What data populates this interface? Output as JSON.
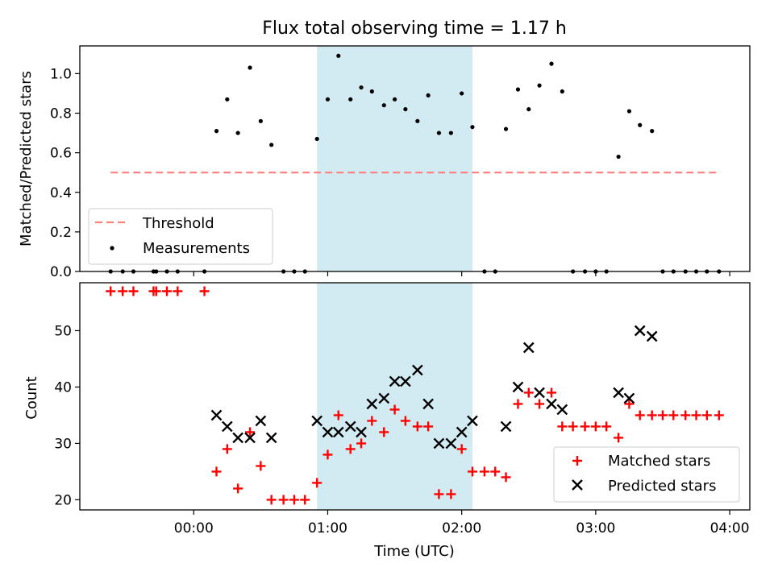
{
  "title": "Flux total observing time = 1.17 h",
  "chart_data": [
    {
      "type": "scatter",
      "panel": "top",
      "ylabel": "Matched/Predicted stars",
      "xlabel": "",
      "ylim": [
        0,
        1.14
      ],
      "yticks": [
        0.0,
        0.2,
        0.4,
        0.6,
        0.8,
        1.0
      ],
      "ytick_labels": [
        "0.0",
        "0.2",
        "0.4",
        "0.6",
        "0.8",
        "1.0"
      ],
      "threshold": {
        "name": "Threshold",
        "value": 0.5,
        "x_start": -0.62,
        "x_end": 3.93,
        "color": "#ff7f7f"
      },
      "highlight": {
        "x_start": 0.92,
        "x_end": 2.08,
        "color": "#add8e6"
      },
      "legend": {
        "position": "lower-left",
        "entries": [
          "Threshold",
          "Measurements"
        ]
      },
      "series": [
        {
          "name": "Measurements",
          "color": "#000000",
          "x": [
            -0.62,
            -0.53,
            -0.45,
            -0.3,
            -0.28,
            -0.2,
            -0.12,
            0.08,
            0.17,
            0.25,
            0.33,
            0.42,
            0.5,
            0.58,
            0.67,
            0.75,
            0.83,
            0.92,
            1.0,
            1.08,
            1.17,
            1.25,
            1.33,
            1.42,
            1.5,
            1.58,
            1.67,
            1.75,
            1.83,
            1.92,
            2.0,
            2.08,
            2.17,
            2.25,
            2.33,
            2.42,
            2.5,
            2.58,
            2.67,
            2.75,
            2.83,
            2.92,
            3.0,
            3.08,
            3.17,
            3.25,
            3.33,
            3.42,
            3.5,
            3.58,
            3.67,
            3.75,
            3.83,
            3.92
          ],
          "y": [
            0,
            0,
            0,
            0,
            0,
            0,
            0,
            0,
            0.71,
            0.87,
            0.7,
            1.03,
            0.76,
            0.64,
            0,
            0,
            0,
            0.67,
            0.87,
            1.09,
            0.87,
            0.93,
            0.91,
            0.84,
            0.87,
            0.82,
            0.76,
            0.89,
            0.7,
            0.7,
            0.9,
            0.73,
            0,
            0,
            0.72,
            0.92,
            0.82,
            0.94,
            1.05,
            0.91,
            0,
            0,
            0,
            0,
            0.58,
            0.81,
            0.74,
            0.71,
            0,
            0,
            0,
            0,
            0,
            0
          ]
        }
      ]
    },
    {
      "type": "scatter",
      "panel": "bottom",
      "xlabel": "Time (UTC)",
      "ylabel": "Count",
      "xlim": [
        -0.85,
        4.15
      ],
      "ylim": [
        18.2,
        58.5
      ],
      "xticks": [
        0,
        1,
        2,
        3,
        4
      ],
      "xtick_labels": [
        "00:00",
        "01:00",
        "02:00",
        "03:00",
        "04:00"
      ],
      "yticks": [
        20,
        30,
        40,
        50
      ],
      "ytick_labels": [
        "20",
        "30",
        "40",
        "50"
      ],
      "highlight": {
        "x_start": 0.92,
        "x_end": 2.08,
        "color": "#add8e6"
      },
      "legend": {
        "position": "lower-right",
        "entries": [
          "Matched stars",
          "Predicted stars"
        ]
      },
      "series": [
        {
          "name": "Matched stars",
          "marker": "plus",
          "color": "#ff0000",
          "x": [
            -0.62,
            -0.53,
            -0.45,
            -0.3,
            -0.28,
            -0.2,
            -0.12,
            0.08,
            0.17,
            0.25,
            0.33,
            0.42,
            0.5,
            0.58,
            0.67,
            0.75,
            0.83,
            0.92,
            1.0,
            1.08,
            1.17,
            1.25,
            1.33,
            1.42,
            1.5,
            1.58,
            1.67,
            1.75,
            1.83,
            1.92,
            2.0,
            2.08,
            2.17,
            2.25,
            2.33,
            2.42,
            2.5,
            2.58,
            2.67,
            2.75,
            2.83,
            2.92,
            3.0,
            3.08,
            3.17,
            3.25,
            3.33,
            3.42,
            3.5,
            3.58,
            3.67,
            3.75,
            3.83,
            3.92
          ],
          "y": [
            57,
            57,
            57,
            57,
            57,
            57,
            57,
            57,
            25,
            29,
            22,
            32,
            26,
            20,
            20,
            20,
            20,
            23,
            28,
            35,
            29,
            30,
            34,
            32,
            36,
            34,
            33,
            33,
            21,
            21,
            29,
            25,
            25,
            25,
            24,
            37,
            39,
            37,
            39,
            33,
            33,
            33,
            33,
            33,
            31,
            37,
            35,
            35,
            35,
            35,
            35,
            35,
            35,
            35
          ]
        },
        {
          "name": "Predicted stars",
          "marker": "x",
          "color": "#000000",
          "x": [
            0.17,
            0.25,
            0.33,
            0.42,
            0.5,
            0.58,
            0.92,
            1.0,
            1.08,
            1.17,
            1.25,
            1.33,
            1.42,
            1.5,
            1.58,
            1.67,
            1.75,
            1.83,
            1.92,
            2.0,
            2.08,
            2.33,
            2.42,
            2.5,
            2.58,
            2.67,
            2.75,
            3.17,
            3.25,
            3.33,
            3.42
          ],
          "y": [
            35,
            33,
            31,
            31,
            34,
            31,
            34,
            32,
            32,
            33,
            32,
            37,
            38,
            41,
            41,
            43,
            37,
            30,
            30,
            32,
            34,
            33,
            40,
            47,
            39,
            37,
            36,
            39,
            38,
            50,
            49
          ]
        }
      ]
    }
  ]
}
